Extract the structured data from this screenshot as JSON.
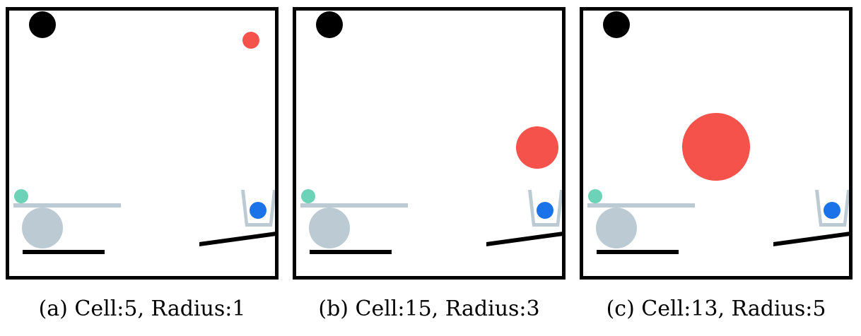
{
  "colors": {
    "frame": "#000000",
    "black_ball": "#000000",
    "red_ball": "#f4524a",
    "green_ball": "#6dd3b8",
    "blue_ball": "#1a73e8",
    "gray": "#bccad3",
    "ramp": "#000000"
  },
  "panels": [
    {
      "caption": "(a) Cell:5, Radius:1",
      "red_ball_icon": "red-ball-icon"
    },
    {
      "caption": "(b) Cell:15, Radius:3",
      "red_ball_icon": "red-ball-icon"
    },
    {
      "caption": "(c) Cell:13, Radius:5",
      "red_ball_icon": "red-ball-icon"
    }
  ]
}
